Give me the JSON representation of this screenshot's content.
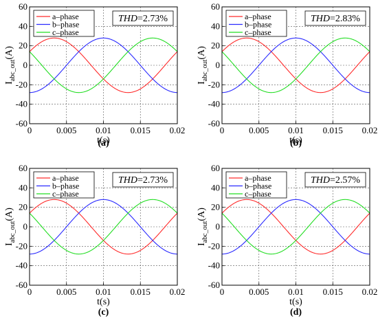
{
  "chart_data": [
    {
      "type": "line",
      "panel": "(a)",
      "thd_label": "THD",
      "thd_value": "=2.73%",
      "xlabel": "t(s)",
      "ylabel": "I",
      "ylabel_sub": "abc_out",
      "ylabel_unit": "(A)",
      "xlim": [
        0,
        0.02
      ],
      "ylim": [
        -60,
        60
      ],
      "xticks": [
        "0",
        "0.005",
        "0.01",
        "0.015",
        "0.02"
      ],
      "yticks": [
        "60",
        "40",
        "20",
        "0",
        "-20",
        "-40",
        "-60"
      ],
      "grid": true,
      "legend": "top-left",
      "amplitude": 28,
      "series": [
        {
          "name": "a–phase",
          "color": "#ff2a2a",
          "phase_deg": 30
        },
        {
          "name": "b–phase",
          "color": "#2a2aff",
          "phase_deg": -90
        },
        {
          "name": "c–phase",
          "color": "#22dd22",
          "phase_deg": 150
        }
      ]
    },
    {
      "type": "line",
      "panel": "(b)",
      "thd_label": "THD",
      "thd_value": "=2.83%",
      "xlabel": "t(s)",
      "ylabel": "I",
      "ylabel_sub": "abc_out",
      "ylabel_unit": "(A)",
      "xlim": [
        0,
        0.02
      ],
      "ylim": [
        -60,
        60
      ],
      "xticks": [
        "0",
        "0.005",
        "0.01",
        "0.015",
        "0.02"
      ],
      "yticks": [
        "60",
        "40",
        "20",
        "0",
        "-20",
        "-40",
        "-60"
      ],
      "grid": true,
      "legend": "top-left",
      "amplitude": 28,
      "series": [
        {
          "name": "a–phase",
          "color": "#ff2a2a",
          "phase_deg": 30
        },
        {
          "name": "b–phase",
          "color": "#2a2aff",
          "phase_deg": -90
        },
        {
          "name": "c–phase",
          "color": "#22dd22",
          "phase_deg": 150
        }
      ]
    },
    {
      "type": "line",
      "panel": "(c)",
      "thd_label": "THD",
      "thd_value": "=2.73%",
      "xlabel": "t(s)",
      "ylabel": "I",
      "ylabel_sub": "abc_out",
      "ylabel_unit": "(A)",
      "xlim": [
        0,
        0.02
      ],
      "ylim": [
        -60,
        60
      ],
      "xticks": [
        "0",
        "0.005",
        "0.01",
        "0.015",
        "0.02"
      ],
      "yticks": [
        "60",
        "40",
        "20",
        "0",
        "-20",
        "-40",
        "-60"
      ],
      "grid": true,
      "legend": "top-left",
      "amplitude": 28,
      "series": [
        {
          "name": "a–phase",
          "color": "#ff2a2a",
          "phase_deg": 30
        },
        {
          "name": "b–phase",
          "color": "#2a2aff",
          "phase_deg": -90
        },
        {
          "name": "c–phase",
          "color": "#22dd22",
          "phase_deg": 150
        }
      ]
    },
    {
      "type": "line",
      "panel": "(d)",
      "thd_label": "THD",
      "thd_value": "=2.57%",
      "xlabel": "t(s)",
      "ylabel": "I",
      "ylabel_sub": "abc_out",
      "ylabel_unit": "(A)",
      "xlim": [
        0,
        0.02
      ],
      "ylim": [
        -60,
        60
      ],
      "xticks": [
        "0",
        "0.005",
        "0.01",
        "0.015",
        "0.02"
      ],
      "yticks": [
        "60",
        "40",
        "20",
        "0",
        "-20",
        "-40",
        "-60"
      ],
      "grid": true,
      "legend": "top-left",
      "amplitude": 28,
      "series": [
        {
          "name": "a–phase",
          "color": "#ff2a2a",
          "phase_deg": 30
        },
        {
          "name": "b–phase",
          "color": "#2a2aff",
          "phase_deg": -90
        },
        {
          "name": "c–phase",
          "color": "#22dd22",
          "phase_deg": 150
        }
      ]
    }
  ]
}
